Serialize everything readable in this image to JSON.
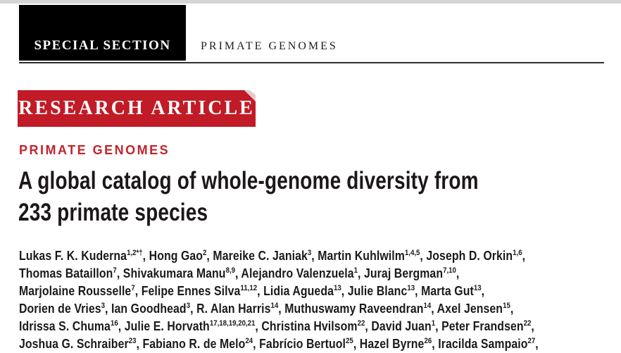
{
  "colors": {
    "banner_red": "#c11b27",
    "label_red": "#c2242d",
    "black_box": "#000000",
    "top_strip_gray": "#d5d5d5",
    "rule_dark": "#2e2e2e",
    "fold_pink": "#e7caca"
  },
  "masthead": {
    "special_section_label": "SPECIAL SECTION",
    "section_title": "PRIMATE GENOMES"
  },
  "article": {
    "kicker_banner": "RESEARCH ARTICLE",
    "section_label": "PRIMATE GENOMES",
    "title_line1": "A global catalog of whole-genome diversity from",
    "title_line2": "233 primate species"
  },
  "authors": {
    "lines": [
      [
        {
          "t": "Lukas F. K. Kuderna",
          "sup": "1,2*†"
        },
        {
          "t": ", Hong Gao",
          "sup": "2"
        },
        {
          "t": ", Mareike C. Janiak",
          "sup": "3"
        },
        {
          "t": ", Martin Kuhlwilm",
          "sup": "1,4,5"
        },
        {
          "t": ", Joseph D. Orkin",
          "sup": "1,6"
        },
        {
          "t": ","
        }
      ],
      [
        {
          "t": "Thomas Bataillon",
          "sup": "7"
        },
        {
          "t": ", Shivakumara Manu",
          "sup": "8,9"
        },
        {
          "t": ", Alejandro Valenzuela",
          "sup": "1"
        },
        {
          "t": ", Juraj Bergman",
          "sup": "7,10"
        },
        {
          "t": ","
        }
      ],
      [
        {
          "t": "Marjolaine Rousselle",
          "sup": "7"
        },
        {
          "t": ", Felipe Ennes Silva",
          "sup": "11,12"
        },
        {
          "t": ", Lidia Agueda",
          "sup": "13"
        },
        {
          "t": ", Julie Blanc",
          "sup": "13"
        },
        {
          "t": ", Marta Gut",
          "sup": "13"
        },
        {
          "t": ","
        }
      ],
      [
        {
          "t": "Dorien de Vries",
          "sup": "3"
        },
        {
          "t": ", Ian Goodhead",
          "sup": "3"
        },
        {
          "t": ", R. Alan Harris",
          "sup": "14"
        },
        {
          "t": ", Muthuswamy Raveendran",
          "sup": "14"
        },
        {
          "t": ", Axel Jensen",
          "sup": "15"
        },
        {
          "t": ","
        }
      ],
      [
        {
          "t": "Idrissa S. Chuma",
          "sup": "16"
        },
        {
          "t": ", Julie E. Horvath",
          "sup": "17,18,19,20,21"
        },
        {
          "t": ", Christina Hvilsom",
          "sup": "22"
        },
        {
          "t": ", David Juan",
          "sup": "1"
        },
        {
          "t": ", Peter Frandsen",
          "sup": "22"
        },
        {
          "t": ","
        }
      ],
      [
        {
          "t": "Joshua G. Schraiber",
          "sup": "23"
        },
        {
          "t": ", Fabiano R. de Melo",
          "sup": "24"
        },
        {
          "t": ", Fabrício Bertuol",
          "sup": "25"
        },
        {
          "t": ", Hazel Byrne",
          "sup": "26"
        },
        {
          "t": ", Iracilda Sampaio",
          "sup": "27"
        },
        {
          "t": ","
        }
      ]
    ]
  }
}
